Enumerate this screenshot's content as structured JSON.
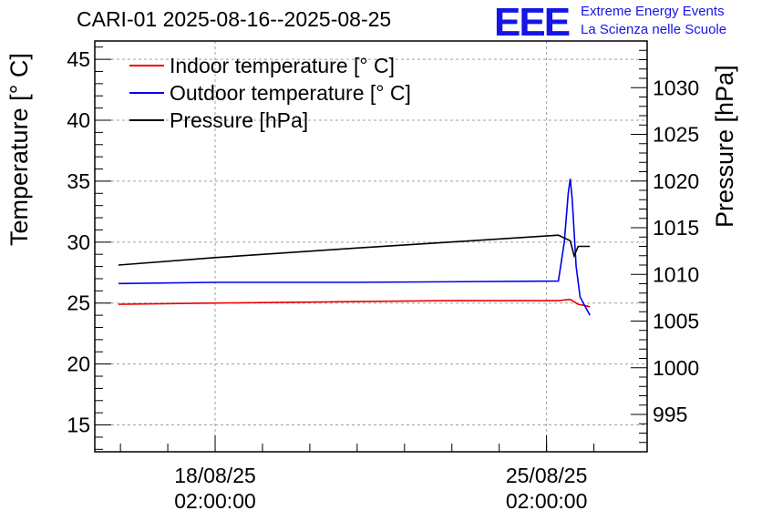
{
  "title": "CARI-01 2025-08-16--2025-08-25",
  "logo": {
    "mark": "EEE",
    "line1": "Extreme Energy Events",
    "line2": "La Scienza nelle Scuole",
    "color": "#1515e6"
  },
  "chart_data": {
    "type": "line",
    "title": "CARI-01 2025-08-16--2025-08-25",
    "ylabel": "Temperature [° C]",
    "y2label": "Pressure [hPa]",
    "ylim": [
      12.8,
      46.5
    ],
    "y2lim": [
      991,
      1035
    ],
    "yticks": [
      15,
      20,
      25,
      30,
      35,
      40,
      45
    ],
    "y2ticks": [
      995,
      1000,
      1005,
      1010,
      1015,
      1020,
      1025,
      1030
    ],
    "x_tick_labels": [
      {
        "x": "2025-08-18 02:00:00",
        "date": "18/08/25",
        "time": "02:00:00"
      },
      {
        "x": "2025-08-25 02:00:00",
        "date": "25/08/25",
        "time": "02:00:00"
      }
    ],
    "xlim": [
      "2025-08-15 13:00:00",
      "2025-08-27 05:00:00"
    ],
    "grid": true,
    "legend_position": "top-left",
    "series": [
      {
        "name": "Indoor temperature [° C]",
        "axis": "left",
        "color": "#ee0000",
        "points": [
          [
            "2025-08-16 01:00",
            24.9
          ],
          [
            "2025-08-18 02:00",
            25.0
          ],
          [
            "2025-08-20 12:00",
            25.1
          ],
          [
            "2025-08-23 00:00",
            25.2
          ],
          [
            "2025-08-25 08:00",
            25.2
          ],
          [
            "2025-08-25 14:00",
            25.3
          ],
          [
            "2025-08-25 18:00",
            24.9
          ],
          [
            "2025-08-26 00:00",
            24.7
          ]
        ]
      },
      {
        "name": "Outdoor temperature [° C]",
        "axis": "left",
        "color": "#0000ee",
        "points": [
          [
            "2025-08-16 01:00",
            26.6
          ],
          [
            "2025-08-18 02:00",
            26.7
          ],
          [
            "2025-08-21 00:00",
            26.7
          ],
          [
            "2025-08-25 08:00",
            26.8
          ],
          [
            "2025-08-25 11:00",
            30.0
          ],
          [
            "2025-08-25 13:00",
            34.0
          ],
          [
            "2025-08-25 14:00",
            35.2
          ],
          [
            "2025-08-25 15:00",
            33.5
          ],
          [
            "2025-08-25 17:00",
            28.0
          ],
          [
            "2025-08-25 19:00",
            25.5
          ],
          [
            "2025-08-26 00:00",
            24.0
          ]
        ]
      },
      {
        "name": "Pressure [hPa]",
        "axis": "right",
        "color": "#000000",
        "points": [
          [
            "2025-08-16 01:00",
            1011.0
          ],
          [
            "2025-08-18 02:00",
            1011.8
          ],
          [
            "2025-08-21 00:00",
            1012.8
          ],
          [
            "2025-08-25 08:00",
            1014.2
          ],
          [
            "2025-08-25 14:00",
            1013.6
          ],
          [
            "2025-08-25 16:00",
            1012.0
          ],
          [
            "2025-08-25 18:00",
            1013.0
          ],
          [
            "2025-08-26 00:00",
            1013.0
          ]
        ]
      }
    ]
  }
}
